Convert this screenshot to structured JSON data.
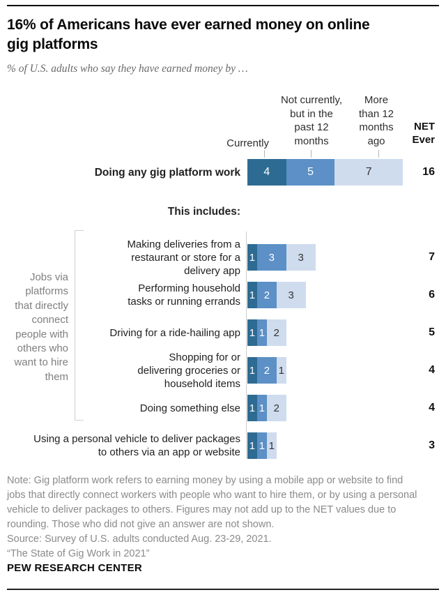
{
  "page": {
    "title": "16% of Americans have ever earned money on online\ngig platforms",
    "subtitle": "% of U.S. adults who say they have earned money by …",
    "brand": "PEW RESEARCH CENTER"
  },
  "columns": {
    "currently": "Currently",
    "past12": "Not currently,\nbut in the\npast 12\nmonths",
    "more12": "More\nthan 12\nmonths\nago",
    "net": "NET\nEver"
  },
  "includes_label": "This includes:",
  "group_label": "Jobs via\nplatforms\nthat directly\nconnect\npeople with\nothers who\nwant to hire\nthem",
  "notes": "Note: Gig platform work refers to earning money by using a mobile app or website to find\njobs that directly connect workers with people who want to hire them, or by using a personal\nvehicle to deliver packages to others. Figures may not add up to the NET values due to\nrounding. Those who did not give an answer are not shown.\nSource: Survey of U.S. adults conducted Aug. 23-29, 2021.\n“The State of Gig Work in 2021”",
  "chart_data": {
    "type": "bar",
    "stacked": true,
    "orientation": "horizontal",
    "unit": "% of U.S. adults",
    "xlim": [
      0,
      16
    ],
    "series_names": [
      "Currently",
      "Not currently, but in the past 12 months",
      "More than 12 months ago"
    ],
    "net_label": "NET Ever",
    "colors": {
      "currently": "#2E6B92",
      "past12": "#5C90C6",
      "more12": "#CFDCEE"
    },
    "rows": [
      {
        "label_lines": [
          "Doing any gig platform work"
        ],
        "values": [
          4,
          5,
          7
        ],
        "net": 16,
        "emphasis": true
      },
      {
        "label_lines": [
          "Making deliveries from a",
          "restaurant or store for a",
          "delivery app"
        ],
        "values": [
          1,
          3,
          3
        ],
        "net": 7
      },
      {
        "label_lines": [
          "Performing household",
          "tasks or running errands"
        ],
        "values": [
          1,
          2,
          3
        ],
        "net": 6
      },
      {
        "label_lines": [
          "Driving for a ride-hailing app"
        ],
        "values": [
          1,
          1,
          2
        ],
        "net": 5
      },
      {
        "label_lines": [
          "Shopping for or",
          "delivering groceries or",
          "household items"
        ],
        "values": [
          1,
          2,
          1
        ],
        "net": 4
      },
      {
        "label_lines": [
          "Doing something else"
        ],
        "values": [
          1,
          1,
          2
        ],
        "net": 4
      },
      {
        "label_lines": [
          "Using a personal vehicle to deliver packages",
          "to others via an app or website"
        ],
        "values": [
          1,
          1,
          1
        ],
        "net": 3
      }
    ]
  }
}
